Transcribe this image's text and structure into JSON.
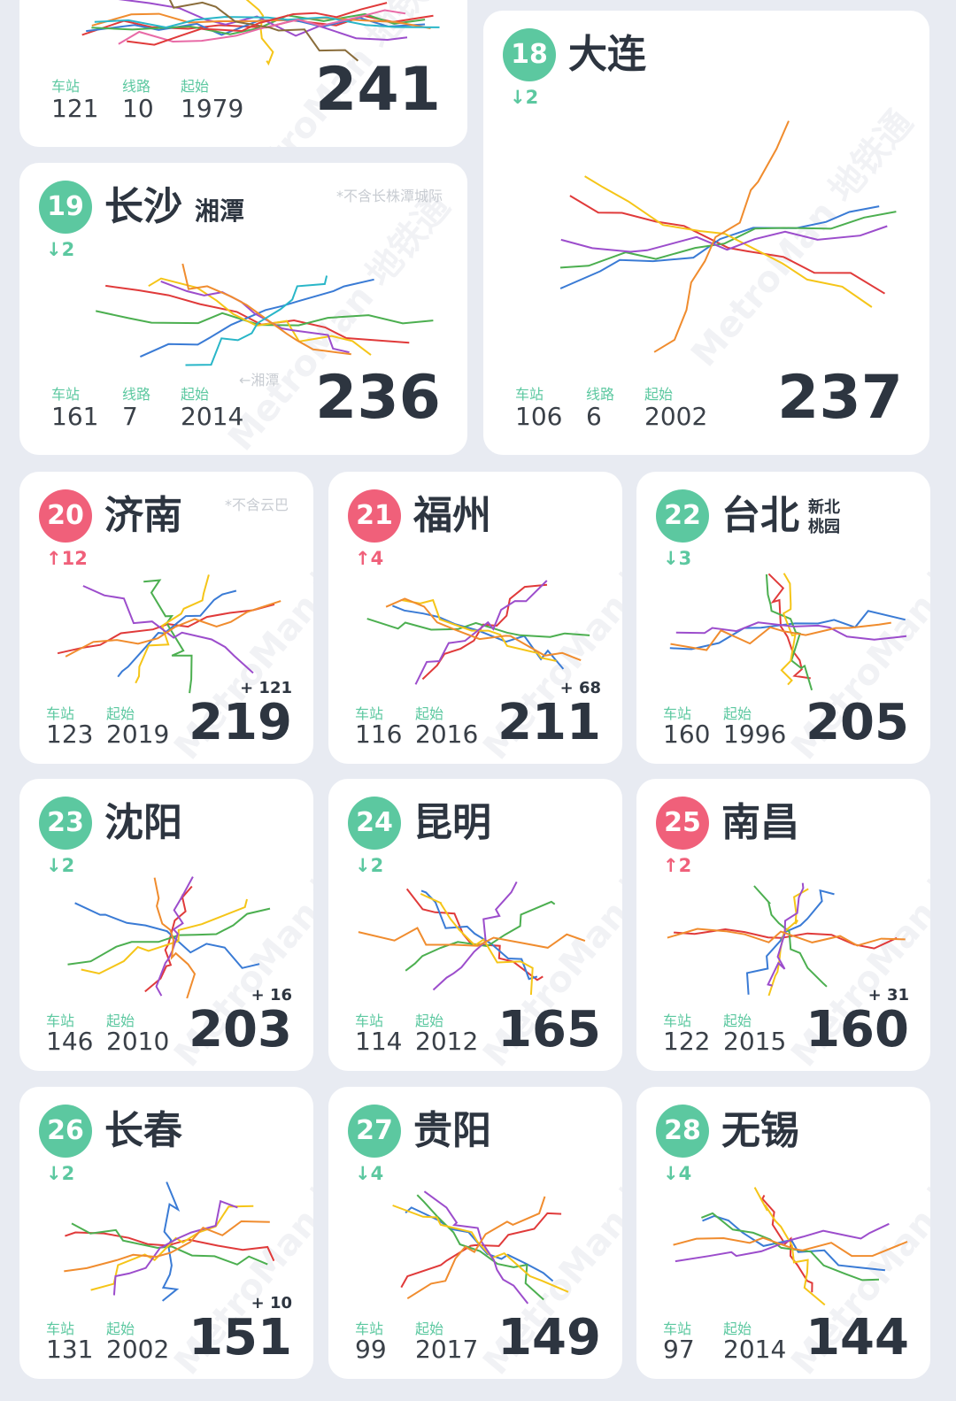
{
  "watermark": "MetroMan 地铁通",
  "stat_labels": {
    "stations": "车站",
    "lines": "线路",
    "start": "起始"
  },
  "cards": [
    {
      "stations": 121,
      "lines": 10,
      "start": 1979,
      "length": 241
    },
    {
      "rank": "18",
      "name": "大连",
      "change": "↓2",
      "stations": 106,
      "lines": 6,
      "start": 2002,
      "length": 237
    },
    {
      "rank": "19",
      "name": "长沙",
      "subname": [
        "湘潭"
      ],
      "change": "↓2",
      "note": "*不含长株潭城际",
      "map_label": "←湘潭",
      "stations": 161,
      "lines": 7,
      "start": 2014,
      "length": 236
    },
    {
      "rank": "20",
      "name": "济南",
      "change": "↑12",
      "note": "*不含云巴",
      "stations": 123,
      "start": 2019,
      "length": 219,
      "added": "+ 121"
    },
    {
      "rank": "21",
      "name": "福州",
      "change": "↑4",
      "stations": 116,
      "start": 2016,
      "length": 211,
      "added": "+ 68"
    },
    {
      "rank": "22",
      "name": "台北",
      "subname": [
        "新北",
        "桃园"
      ],
      "change": "↓3",
      "stations": 160,
      "start": 1996,
      "length": 205
    },
    {
      "rank": "23",
      "name": "沈阳",
      "change": "↓2",
      "stations": 146,
      "start": 2010,
      "length": 203,
      "added": "+ 16"
    },
    {
      "rank": "24",
      "name": "昆明",
      "change": "↓2",
      "stations": 114,
      "start": 2012,
      "length": 165
    },
    {
      "rank": "25",
      "name": "南昌",
      "change": "↑2",
      "stations": 122,
      "start": 2015,
      "length": 160,
      "added": "+ 31"
    },
    {
      "rank": "26",
      "name": "长春",
      "change": "↓2",
      "stations": 131,
      "start": 2002,
      "length": 151,
      "added": "+ 10"
    },
    {
      "rank": "27",
      "name": "贵阳",
      "change": "↓4",
      "stations": 99,
      "start": 2017,
      "length": 149
    },
    {
      "rank": "28",
      "name": "无锡",
      "change": "↓4",
      "stations": 97,
      "start": 2014,
      "length": 144
    }
  ]
}
